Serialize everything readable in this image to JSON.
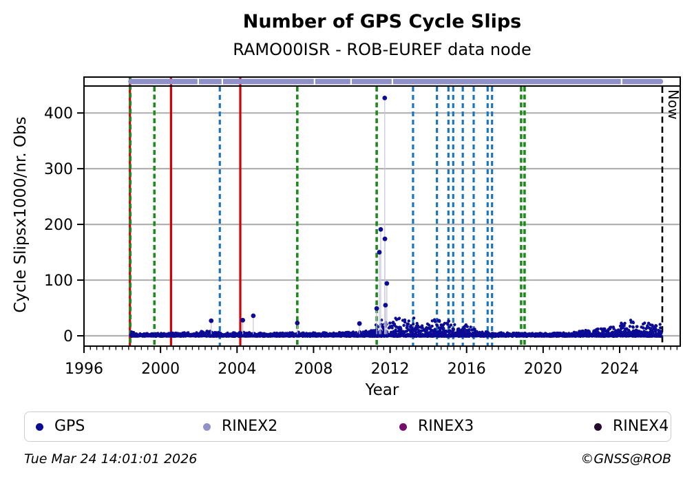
{
  "colors": {
    "gps": "#0b0b94",
    "rinex2": "#9191ca",
    "rinex3": "#73106e",
    "rinex4": "#270b2e",
    "event_green": "#1e8b1e",
    "event_red": "#d60000",
    "event_blue": "#1d76bb",
    "now_line": "#000000",
    "grid": "#b0b0b0",
    "stem": "#c4c4da"
  },
  "chart_data": {
    "type": "scatter",
    "title": "Number of GPS Cycle Slips",
    "subtitle": "RAMO00ISR - ROB-EUREF data node",
    "xlabel": "Year",
    "ylabel": "Cycle Slipsx1000/nr. Obs",
    "xlim": [
      1996,
      2027.2
    ],
    "ylim": [
      -18,
      464
    ],
    "x_ticks": [
      1996,
      2000,
      2004,
      2008,
      2012,
      2016,
      2020,
      2024
    ],
    "y_ticks": [
      0,
      100,
      200,
      300,
      400
    ],
    "grid": "horizontal",
    "series": [
      {
        "name": "GPS",
        "style": "dense scatter of daily values hugging zero",
        "start_year": 1998.45,
        "end_year": 2026.18,
        "baseline_envelope": [
          [
            1998.45,
            9
          ],
          [
            1998.7,
            5
          ],
          [
            1999.5,
            4
          ],
          [
            2000.5,
            5
          ],
          [
            2001.5,
            6
          ],
          [
            2002.3,
            9
          ],
          [
            2002.8,
            8
          ],
          [
            2003.5,
            5
          ],
          [
            2004.2,
            7
          ],
          [
            2005,
            5
          ],
          [
            2006,
            5
          ],
          [
            2007.2,
            7
          ],
          [
            2008,
            6
          ],
          [
            2009,
            6
          ],
          [
            2010,
            7
          ],
          [
            2010.8,
            9
          ],
          [
            2011.15,
            16
          ],
          [
            2011.45,
            30
          ],
          [
            2011.8,
            26
          ],
          [
            2012.1,
            30
          ],
          [
            2012.45,
            36
          ],
          [
            2012.7,
            28
          ],
          [
            2013,
            32
          ],
          [
            2013.25,
            36
          ],
          [
            2013.6,
            20
          ],
          [
            2014,
            22
          ],
          [
            2014.45,
            32
          ],
          [
            2014.8,
            24
          ],
          [
            2015.1,
            28
          ],
          [
            2015.5,
            18
          ],
          [
            2015.9,
            21
          ],
          [
            2016.3,
            15
          ],
          [
            2016.8,
            9
          ],
          [
            2017.5,
            6
          ],
          [
            2018.5,
            5
          ],
          [
            2019.5,
            5
          ],
          [
            2020.5,
            5
          ],
          [
            2021.5,
            6
          ],
          [
            2022.2,
            10
          ],
          [
            2022.8,
            14
          ],
          [
            2023.3,
            13
          ],
          [
            2023.8,
            18
          ],
          [
            2024.3,
            26
          ],
          [
            2024.6,
            30
          ],
          [
            2025,
            18
          ],
          [
            2025.4,
            25
          ],
          [
            2025.8,
            20
          ],
          [
            2026.15,
            22
          ]
        ],
        "outliers": [
          [
            2002.65,
            27
          ],
          [
            2004.3,
            28
          ],
          [
            2004.85,
            36
          ],
          [
            2007.15,
            23
          ],
          [
            2010.4,
            22
          ],
          [
            2011.3,
            49
          ],
          [
            2011.44,
            150
          ],
          [
            2011.51,
            191
          ],
          [
            2011.72,
            427
          ],
          [
            2011.73,
            174
          ],
          [
            2011.76,
            55
          ],
          [
            2011.83,
            94
          ]
        ]
      }
    ],
    "rinex2_interval": {
      "start": 1998.38,
      "end": 2026.2,
      "gaps": [
        2001.97,
        2003.23,
        2008.05,
        2009.96,
        2012.12,
        2024.1
      ]
    },
    "events": [
      {
        "year": 1998.4,
        "type": "red-solid",
        "full_height": true
      },
      {
        "year": 1998.42,
        "type": "green-dashed",
        "full_height": true
      },
      {
        "year": 1999.68,
        "type": "green-dashed",
        "full_height": false
      },
      {
        "year": 2000.55,
        "type": "red-solid",
        "full_height": true
      },
      {
        "year": 2003.1,
        "type": "blue-dashed",
        "full_height": false
      },
      {
        "year": 2004.17,
        "type": "red-solid",
        "full_height": true
      },
      {
        "year": 2007.15,
        "type": "green-dashed",
        "full_height": false
      },
      {
        "year": 2011.3,
        "type": "green-dashed",
        "full_height": false
      },
      {
        "year": 2013.2,
        "type": "blue-dashed",
        "full_height": false
      },
      {
        "year": 2014.45,
        "type": "blue-dashed",
        "full_height": false
      },
      {
        "year": 2015.05,
        "type": "blue-dashed",
        "full_height": false
      },
      {
        "year": 2015.3,
        "type": "blue-dashed",
        "full_height": false
      },
      {
        "year": 2015.8,
        "type": "blue-dashed",
        "full_height": false
      },
      {
        "year": 2016.37,
        "type": "blue-dashed",
        "full_height": false
      },
      {
        "year": 2017.1,
        "type": "blue-dashed",
        "full_height": false
      },
      {
        "year": 2017.33,
        "type": "blue-dashed",
        "full_height": false
      },
      {
        "year": 2018.85,
        "type": "green-dashed",
        "full_height": false
      },
      {
        "year": 2019.03,
        "type": "green-dashed",
        "full_height": false
      }
    ],
    "now_line": {
      "year": 2026.23,
      "label": "Now",
      "type": "black-dashed"
    },
    "legend_position": "bottom"
  },
  "legend": {
    "items": [
      {
        "label": "GPS",
        "color": "#0b0b94"
      },
      {
        "label": "RINEX2",
        "color": "#9191ca"
      },
      {
        "label": "RINEX3",
        "color": "#73106e"
      },
      {
        "label": "RINEX4",
        "color": "#270b2e"
      }
    ]
  },
  "footer": {
    "timestamp": "Tue Mar 24 14:01:01 2026",
    "credit": "©GNSS@ROB"
  }
}
